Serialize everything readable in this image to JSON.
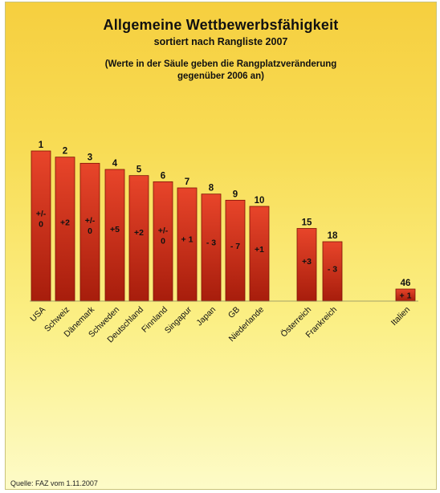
{
  "header": {
    "title": "Allgemeine Wettbewerbsfähigkeit",
    "subtitle": "sortiert nach Rangliste 2007",
    "note_line1": "(Werte in der Säule geben die Rangplatzveränderung",
    "note_line2": "gegenüber 2006 an)"
  },
  "footer": {
    "source": "Quelle: FAZ vom 1.11.2007"
  },
  "colors": {
    "bar_top": "#e8452a",
    "bar_bottom": "#a71d0c",
    "bar_stroke": "#7d1205"
  },
  "chart_data": {
    "type": "bar",
    "title": "Allgemeine Wettbewerbsfähigkeit",
    "subtitle": "sortiert nach Rangliste 2007",
    "categories": [
      "USA",
      "Schweiz",
      "Dänemark",
      "Schweden",
      "Deutschland",
      "Finnland",
      "Singapur",
      "Japan",
      "GB",
      "Niederlande",
      "Österreich",
      "Frankreich",
      "Italien"
    ],
    "values": [
      1,
      2,
      3,
      4,
      5,
      6,
      7,
      8,
      9,
      10,
      15,
      18,
      46
    ],
    "change_labels": [
      [
        "+/-",
        "0"
      ],
      [
        "+2"
      ],
      [
        "+/-",
        "0"
      ],
      [
        "+5"
      ],
      [
        "+2"
      ],
      [
        "+/-",
        "0"
      ],
      [
        "+ 1"
      ],
      [
        "- 3"
      ],
      [
        "- 7"
      ],
      [
        "+1"
      ],
      [
        "+3"
      ],
      [
        "- 3"
      ],
      [
        "+ 1"
      ]
    ],
    "grid": false,
    "legend": "none"
  }
}
